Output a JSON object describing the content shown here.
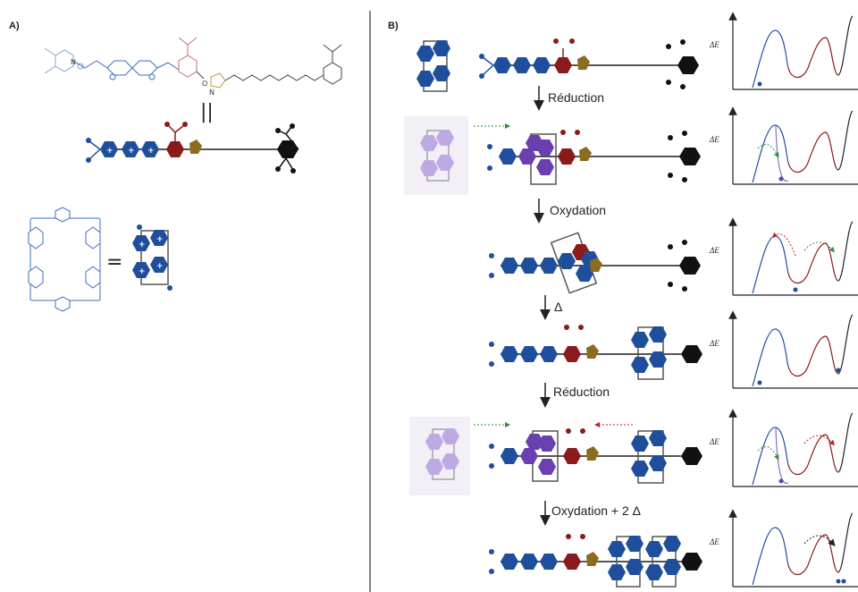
{
  "panels": {
    "a": "A)",
    "b": "B)"
  },
  "steps": [
    "Réduction",
    "Oxydation",
    "Δ",
    "Réduction",
    "Oxydation + 2 Δ"
  ],
  "energy_axis_label": "ΔE",
  "equals_sign": "=",
  "parallel_sign": "||",
  "colors": {
    "blue": "#1f4f9c",
    "red": "#8b1a1a",
    "gold": "#8a6d1e",
    "black": "#111111",
    "purple": "#6a3fb0",
    "light_purple": "#b49ee0",
    "line_blue": "#3a6fb8"
  }
}
